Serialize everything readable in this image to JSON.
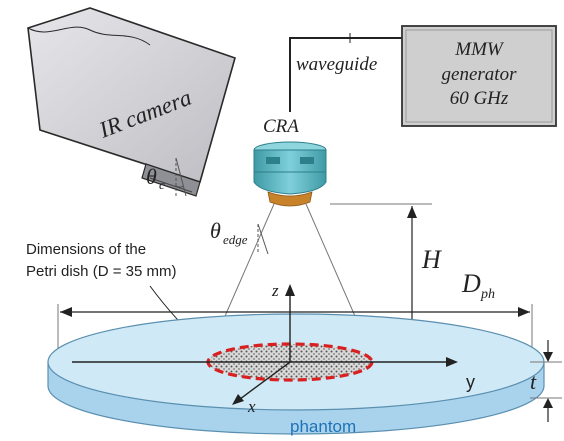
{
  "labels": {
    "ir_camera": "IR camera",
    "theta_c_main": "θ",
    "theta_c_sub": "c",
    "waveguide": "waveguide",
    "generator_line1": "MMW",
    "generator_line2": "generator",
    "generator_line3": "60 GHz",
    "cra": "CRA",
    "theta_edge_main": "θ",
    "theta_edge_sub": "edge",
    "petri_line1": "Dimensions of the",
    "petri_line2": "Petri dish (D = 35 mm)",
    "height": "H",
    "dph_main": "D",
    "dph_sub": "ph",
    "axis_z": "z",
    "axis_y": "y",
    "axis_x": "x",
    "thickness": "t",
    "phantom": "phantom"
  },
  "colors": {
    "camera_body": "#d4d4d8",
    "camera_outline": "#2a2a2a",
    "generator_fill": "#cfcfcf",
    "cra_body": "#5bb7c3",
    "cra_dark": "#2d7f8a",
    "cra_tip": "#c8822a",
    "phantom_top": "#cfe9f6",
    "phantom_side": "#a9d3ec",
    "phantom_outline": "#5a8fb0",
    "petri_dashed": "#d92020",
    "phantom_label": "#1e73b8"
  }
}
